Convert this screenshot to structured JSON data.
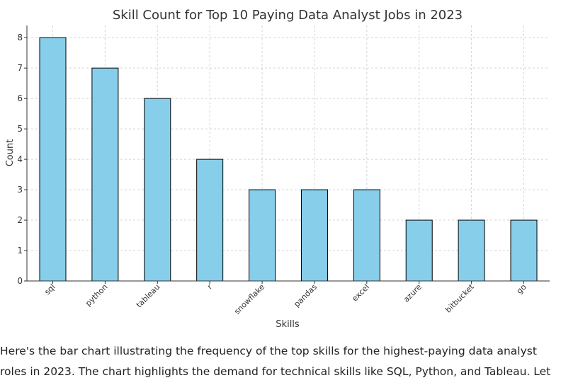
{
  "chart_data": {
    "type": "bar",
    "title": "Skill Count for Top 10 Paying Data Analyst Jobs in 2023",
    "xlabel": "Skills",
    "ylabel": "Count",
    "categories": [
      "sql",
      "python",
      "tableau",
      "r",
      "snowflake",
      "pandas",
      "excel",
      "azure",
      "bitbucket",
      "go"
    ],
    "values": [
      8,
      7,
      6,
      4,
      3,
      3,
      3,
      2,
      2,
      2
    ],
    "yticks": [
      0,
      1,
      2,
      3,
      4,
      5,
      6,
      7,
      8
    ],
    "ylim": [
      0,
      8.4
    ],
    "grid": true,
    "bar_color": "#87ceeb",
    "edge_color": "#000000"
  },
  "caption": {
    "line1": "Here's the bar chart illustrating the frequency of the top skills for the highest-paying data analyst",
    "line2": "roles in 2023. The chart highlights the demand for technical skills like SQL, Python, and Tableau. Let"
  }
}
